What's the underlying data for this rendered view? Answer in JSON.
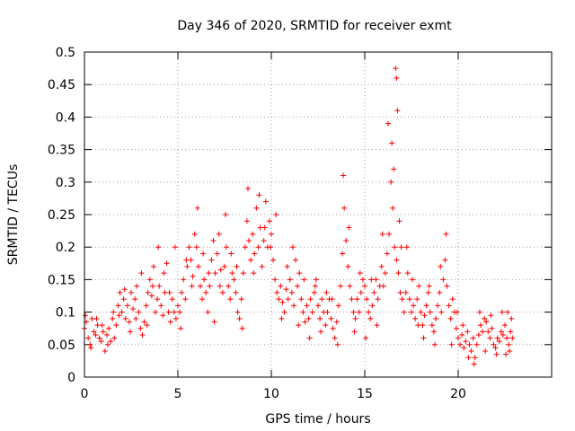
{
  "chart_data": {
    "type": "scatter",
    "title": "Day 346 of 2020, SRMTID for receiver exmt",
    "xlabel": "GPS time / hours",
    "ylabel": "SRMTID / TECUs",
    "xlim": [
      0,
      25
    ],
    "ylim": [
      0,
      0.5
    ],
    "x_ticks": [
      0,
      5,
      10,
      15,
      20
    ],
    "y_ticks": [
      0,
      0.05,
      0.1,
      0.15,
      0.2,
      0.25,
      0.3,
      0.35,
      0.4,
      0.45,
      0.5
    ],
    "x_tick_labels": [
      "0",
      "5",
      "10",
      "15",
      "20"
    ],
    "y_tick_labels": [
      "0",
      "0.05",
      "0.1",
      "0.15",
      "0.2",
      "0.25",
      "0.3",
      "0.35",
      "0.4",
      "0.45",
      "0.5"
    ],
    "grid": true,
    "marker": "+",
    "series": [
      {
        "name": "SRMTID",
        "color": "#ff0000",
        "points": [
          [
            0.0,
            0.075
          ],
          [
            0.1,
            0.085
          ],
          [
            0.2,
            0.06
          ],
          [
            0.3,
            0.05
          ],
          [
            0.4,
            0.09
          ],
          [
            0.5,
            0.07
          ],
          [
            0.6,
            0.065
          ],
          [
            0.7,
            0.08
          ],
          [
            0.8,
            0.06
          ],
          [
            0.9,
            0.055
          ],
          [
            1.0,
            0.07
          ],
          [
            1.1,
            0.04
          ],
          [
            1.2,
            0.065
          ],
          [
            1.3,
            0.075
          ],
          [
            1.4,
            0.055
          ],
          [
            1.5,
            0.09
          ],
          [
            1.6,
            0.06
          ],
          [
            1.7,
            0.08
          ],
          [
            1.8,
            0.11
          ],
          [
            1.9,
            0.13
          ],
          [
            2.0,
            0.1
          ],
          [
            2.1,
            0.12
          ],
          [
            2.2,
            0.09
          ],
          [
            2.3,
            0.11
          ],
          [
            2.4,
            0.085
          ],
          [
            2.5,
            0.13
          ],
          [
            2.6,
            0.105
          ],
          [
            2.7,
            0.12
          ],
          [
            2.8,
            0.14
          ],
          [
            2.9,
            0.1
          ],
          [
            3.0,
            0.075
          ],
          [
            3.1,
            0.065
          ],
          [
            3.2,
            0.085
          ],
          [
            3.3,
            0.11
          ],
          [
            3.4,
            0.13
          ],
          [
            3.5,
            0.15
          ],
          [
            3.6,
            0.125
          ],
          [
            3.7,
            0.17
          ],
          [
            3.8,
            0.1
          ],
          [
            3.9,
            0.12
          ],
          [
            4.0,
            0.14
          ],
          [
            4.1,
            0.11
          ],
          [
            4.2,
            0.095
          ],
          [
            4.3,
            0.13
          ],
          [
            4.4,
            0.175
          ],
          [
            4.5,
            0.1
          ],
          [
            4.6,
            0.085
          ],
          [
            4.7,
            0.12
          ],
          [
            4.8,
            0.1
          ],
          [
            4.9,
            0.09
          ],
          [
            5.0,
            0.11
          ],
          [
            5.1,
            0.1
          ],
          [
            5.2,
            0.13
          ],
          [
            5.3,
            0.15
          ],
          [
            5.4,
            0.12
          ],
          [
            5.5,
            0.17
          ],
          [
            5.6,
            0.2
          ],
          [
            5.7,
            0.18
          ],
          [
            5.8,
            0.155
          ],
          [
            5.9,
            0.22
          ],
          [
            6.0,
            0.2
          ],
          [
            6.1,
            0.17
          ],
          [
            6.2,
            0.14
          ],
          [
            6.3,
            0.12
          ],
          [
            6.4,
            0.15
          ],
          [
            6.5,
            0.13
          ],
          [
            6.6,
            0.1
          ],
          [
            6.7,
            0.14
          ],
          [
            6.8,
            0.18
          ],
          [
            6.9,
            0.21
          ],
          [
            7.0,
            0.16
          ],
          [
            7.1,
            0.19
          ],
          [
            7.2,
            0.22
          ],
          [
            7.3,
            0.165
          ],
          [
            7.4,
            0.13
          ],
          [
            7.5,
            0.17
          ],
          [
            7.6,
            0.2
          ],
          [
            7.7,
            0.14
          ],
          [
            7.8,
            0.12
          ],
          [
            7.9,
            0.16
          ],
          [
            8.0,
            0.15
          ],
          [
            8.1,
            0.13
          ],
          [
            8.2,
            0.1
          ],
          [
            8.3,
            0.09
          ],
          [
            8.4,
            0.12
          ],
          [
            8.5,
            0.16
          ],
          [
            8.6,
            0.2
          ],
          [
            8.7,
            0.24
          ],
          [
            8.8,
            0.21
          ],
          [
            8.9,
            0.18
          ],
          [
            9.0,
            0.22
          ],
          [
            9.1,
            0.19
          ],
          [
            9.2,
            0.26
          ],
          [
            9.3,
            0.2
          ],
          [
            9.4,
            0.23
          ],
          [
            9.5,
            0.17
          ],
          [
            9.6,
            0.21
          ],
          [
            9.7,
            0.27
          ],
          [
            9.8,
            0.2
          ],
          [
            9.9,
            0.24
          ],
          [
            10.0,
            0.22
          ],
          [
            10.1,
            0.18
          ],
          [
            10.2,
            0.15
          ],
          [
            10.3,
            0.13
          ],
          [
            10.4,
            0.12
          ],
          [
            10.5,
            0.14
          ],
          [
            10.6,
            0.115
          ],
          [
            10.7,
            0.1
          ],
          [
            10.8,
            0.135
          ],
          [
            10.9,
            0.12
          ],
          [
            11.0,
            0.15
          ],
          [
            11.1,
            0.13
          ],
          [
            11.2,
            0.11
          ],
          [
            11.3,
            0.18
          ],
          [
            11.4,
            0.14
          ],
          [
            11.5,
            0.16
          ],
          [
            11.6,
            0.12
          ],
          [
            11.7,
            0.1
          ],
          [
            11.8,
            0.085
          ],
          [
            11.9,
            0.11
          ],
          [
            12.0,
            0.09
          ],
          [
            12.1,
            0.12
          ],
          [
            12.2,
            0.1
          ],
          [
            12.3,
            0.13
          ],
          [
            12.4,
            0.15
          ],
          [
            12.5,
            0.11
          ],
          [
            12.6,
            0.09
          ],
          [
            12.7,
            0.12
          ],
          [
            12.8,
            0.1
          ],
          [
            12.9,
            0.08
          ],
          [
            13.0,
            0.1
          ],
          [
            13.1,
            0.12
          ],
          [
            13.2,
            0.09
          ],
          [
            13.3,
            0.075
          ],
          [
            13.4,
            0.06
          ],
          [
            13.5,
            0.085
          ],
          [
            13.6,
            0.11
          ],
          [
            13.7,
            0.14
          ],
          [
            13.8,
            0.19
          ],
          [
            13.9,
            0.26
          ],
          [
            14.0,
            0.21
          ],
          [
            14.1,
            0.17
          ],
          [
            14.2,
            0.14
          ],
          [
            14.3,
            0.12
          ],
          [
            14.4,
            0.1
          ],
          [
            14.5,
            0.09
          ],
          [
            14.6,
            0.12
          ],
          [
            14.7,
            0.1
          ],
          [
            14.8,
            0.13
          ],
          [
            14.9,
            0.15
          ],
          [
            15.0,
            0.14
          ],
          [
            15.1,
            0.12
          ],
          [
            15.2,
            0.1
          ],
          [
            15.3,
            0.09
          ],
          [
            15.4,
            0.11
          ],
          [
            15.5,
            0.13
          ],
          [
            15.6,
            0.15
          ],
          [
            15.7,
            0.12
          ],
          [
            15.8,
            0.14
          ],
          [
            15.9,
            0.17
          ],
          [
            16.0,
            0.14
          ],
          [
            16.1,
            0.16
          ],
          [
            16.2,
            0.19
          ],
          [
            16.3,
            0.22
          ],
          [
            16.4,
            0.3
          ],
          [
            16.5,
            0.26
          ],
          [
            16.6,
            0.2
          ],
          [
            16.7,
            0.18
          ],
          [
            16.8,
            0.16
          ],
          [
            16.9,
            0.13
          ],
          [
            17.0,
            0.12
          ],
          [
            17.1,
            0.1
          ],
          [
            17.2,
            0.13
          ],
          [
            17.3,
            0.16
          ],
          [
            17.4,
            0.12
          ],
          [
            17.5,
            0.1
          ],
          [
            17.6,
            0.11
          ],
          [
            17.7,
            0.09
          ],
          [
            17.8,
            0.12
          ],
          [
            17.9,
            0.14
          ],
          [
            18.0,
            0.1
          ],
          [
            18.1,
            0.08
          ],
          [
            18.2,
            0.095
          ],
          [
            18.3,
            0.11
          ],
          [
            18.4,
            0.13
          ],
          [
            18.5,
            0.1
          ],
          [
            18.6,
            0.08
          ],
          [
            18.7,
            0.07
          ],
          [
            18.8,
            0.09
          ],
          [
            18.9,
            0.11
          ],
          [
            19.0,
            0.13
          ],
          [
            19.1,
            0.1
          ],
          [
            19.2,
            0.15
          ],
          [
            19.3,
            0.18
          ],
          [
            19.4,
            0.14
          ],
          [
            19.5,
            0.11
          ],
          [
            19.6,
            0.09
          ],
          [
            19.7,
            0.12
          ],
          [
            19.8,
            0.1
          ],
          [
            19.9,
            0.075
          ],
          [
            20.0,
            0.06
          ],
          [
            20.1,
            0.05
          ],
          [
            20.2,
            0.065
          ],
          [
            20.3,
            0.045
          ],
          [
            20.4,
            0.055
          ],
          [
            20.5,
            0.07
          ],
          [
            20.6,
            0.05
          ],
          [
            20.7,
            0.04
          ],
          [
            20.8,
            0.06
          ],
          [
            20.9,
            0.03
          ],
          [
            21.0,
            0.05
          ],
          [
            21.1,
            0.065
          ],
          [
            21.2,
            0.08
          ],
          [
            21.3,
            0.07
          ],
          [
            21.4,
            0.09
          ],
          [
            21.5,
            0.085
          ],
          [
            21.6,
            0.07
          ],
          [
            21.7,
            0.06
          ],
          [
            21.8,
            0.075
          ],
          [
            21.9,
            0.05
          ],
          [
            22.0,
            0.045
          ],
          [
            22.1,
            0.06
          ],
          [
            22.2,
            0.055
          ],
          [
            22.3,
            0.07
          ],
          [
            22.4,
            0.065
          ],
          [
            22.5,
            0.08
          ],
          [
            22.6,
            0.06
          ],
          [
            22.7,
            0.05
          ],
          [
            22.8,
            0.07
          ],
          [
            22.9,
            0.06
          ],
          [
            0.05,
            0.095
          ],
          [
            0.35,
            0.045
          ],
          [
            0.65,
            0.09
          ],
          [
            0.95,
            0.08
          ],
          [
            1.25,
            0.05
          ],
          [
            1.55,
            0.1
          ],
          [
            1.85,
            0.095
          ],
          [
            2.15,
            0.135
          ],
          [
            2.45,
            0.07
          ],
          [
            2.75,
            0.09
          ],
          [
            3.05,
            0.16
          ],
          [
            3.35,
            0.08
          ],
          [
            3.65,
            0.14
          ],
          [
            3.95,
            0.2
          ],
          [
            4.25,
            0.16
          ],
          [
            4.55,
            0.13
          ],
          [
            4.85,
            0.2
          ],
          [
            5.15,
            0.075
          ],
          [
            5.45,
            0.18
          ],
          [
            5.75,
            0.14
          ],
          [
            6.05,
            0.26
          ],
          [
            6.35,
            0.19
          ],
          [
            6.65,
            0.16
          ],
          [
            6.95,
            0.085
          ],
          [
            7.25,
            0.14
          ],
          [
            7.55,
            0.25
          ],
          [
            7.85,
            0.19
          ],
          [
            8.15,
            0.17
          ],
          [
            8.45,
            0.075
          ],
          [
            8.75,
            0.29
          ],
          [
            9.05,
            0.16
          ],
          [
            9.35,
            0.28
          ],
          [
            9.65,
            0.23
          ],
          [
            9.95,
            0.2
          ],
          [
            10.25,
            0.25
          ],
          [
            10.55,
            0.09
          ],
          [
            10.85,
            0.17
          ],
          [
            11.15,
            0.2
          ],
          [
            11.45,
            0.08
          ],
          [
            11.75,
            0.15
          ],
          [
            12.05,
            0.06
          ],
          [
            12.35,
            0.14
          ],
          [
            12.65,
            0.07
          ],
          [
            12.95,
            0.13
          ],
          [
            13.25,
            0.12
          ],
          [
            13.55,
            0.05
          ],
          [
            13.85,
            0.31
          ],
          [
            14.15,
            0.23
          ],
          [
            14.45,
            0.07
          ],
          [
            14.75,
            0.16
          ],
          [
            15.05,
            0.06
          ],
          [
            15.35,
            0.15
          ],
          [
            15.65,
            0.08
          ],
          [
            15.95,
            0.22
          ],
          [
            16.25,
            0.39
          ],
          [
            16.45,
            0.36
          ],
          [
            16.55,
            0.32
          ],
          [
            16.65,
            0.475
          ],
          [
            16.7,
            0.46
          ],
          [
            16.75,
            0.41
          ],
          [
            16.85,
            0.24
          ],
          [
            16.95,
            0.2
          ],
          [
            17.25,
            0.2
          ],
          [
            17.55,
            0.15
          ],
          [
            17.85,
            0.08
          ],
          [
            18.15,
            0.06
          ],
          [
            18.45,
            0.14
          ],
          [
            18.75,
            0.05
          ],
          [
            19.05,
            0.17
          ],
          [
            19.35,
            0.22
          ],
          [
            19.65,
            0.05
          ],
          [
            19.95,
            0.1
          ],
          [
            20.25,
            0.08
          ],
          [
            20.55,
            0.03
          ],
          [
            20.85,
            0.02
          ],
          [
            21.15,
            0.1
          ],
          [
            21.45,
            0.04
          ],
          [
            21.75,
            0.095
          ],
          [
            22.05,
            0.035
          ],
          [
            22.35,
            0.1
          ],
          [
            22.55,
            0.035
          ],
          [
            22.65,
            0.1
          ],
          [
            22.75,
            0.04
          ],
          [
            22.85,
            0.09
          ]
        ]
      }
    ]
  }
}
